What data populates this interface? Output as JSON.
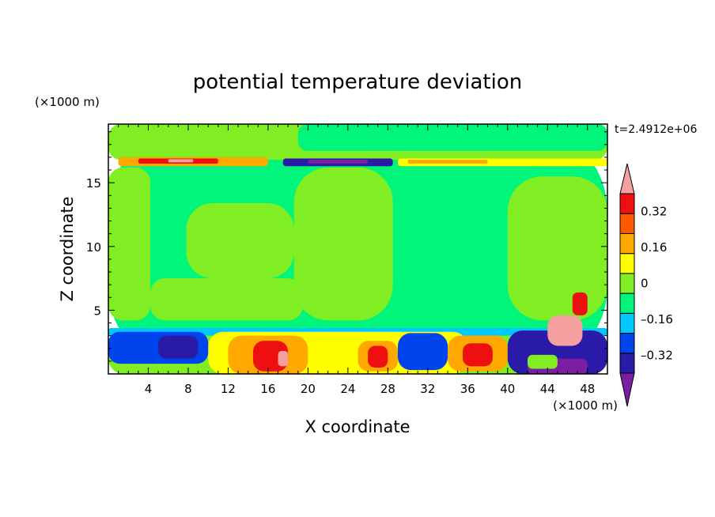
{
  "chart_data": {
    "type": "heatmap",
    "title": "potential temperature deviation",
    "xlabel": "X coordinate",
    "ylabel": "Z coordinate",
    "x_unit": "(×1000 m)",
    "y_unit": "(×1000 m)",
    "time_label": "t=2.4912e+06",
    "xlim": [
      0,
      50
    ],
    "ylim": [
      0,
      19.6
    ],
    "x_ticks": [
      4,
      8,
      12,
      16,
      20,
      24,
      28,
      32,
      36,
      40,
      44,
      48
    ],
    "y_ticks": [
      5,
      10,
      15
    ],
    "x_tick_labels": [
      "4",
      "8",
      "12",
      "16",
      "20",
      "24",
      "28",
      "32",
      "36",
      "40",
      "44",
      "48"
    ],
    "y_tick_labels": [
      "5",
      "10",
      "15"
    ],
    "colorbar": {
      "levels": [
        -0.4,
        -0.32,
        -0.24,
        -0.16,
        -0.08,
        0,
        0.08,
        0.16,
        0.24,
        0.32,
        0.4
      ],
      "labels": [
        {
          "value": 0.32,
          "text": "0.32"
        },
        {
          "value": 0.16,
          "text": "0.16"
        },
        {
          "value": 0,
          "text": "0"
        },
        {
          "value": -0.16,
          "text": "–0.16"
        },
        {
          "value": -0.32,
          "text": "–0.32"
        }
      ],
      "colors_bottom_to_top": [
        "#7b1fa2",
        "#2a1aa8",
        "#0044ee",
        "#00c8ff",
        "#00f57a",
        "#80ee22",
        "#ffff00",
        "#ffa800",
        "#ff5a00",
        "#ee1010",
        "#f5a0a0"
      ]
    },
    "regions": [
      {
        "color": "#00f57a",
        "x": [
          0,
          50
        ],
        "z": [
          0,
          19.6
        ]
      },
      {
        "color": "#80ee22",
        "x": [
          0,
          50
        ],
        "z": [
          16.8,
          19.6
        ]
      },
      {
        "color": "#00f57a",
        "x": [
          19,
          50
        ],
        "z": [
          17.5,
          19.6
        ]
      },
      {
        "color": "#80ee22",
        "x": [
          0,
          4.2
        ],
        "z": [
          4.2,
          16.2
        ]
      },
      {
        "color": "#80ee22",
        "x": [
          4.2,
          19.5
        ],
        "z": [
          4.2,
          7.5
        ]
      },
      {
        "color": "#80ee22",
        "x": [
          7.8,
          18.6
        ],
        "z": [
          7.5,
          13.4
        ]
      },
      {
        "color": "#80ee22",
        "x": [
          18.6,
          28.5
        ],
        "z": [
          4.2,
          16.2
        ]
      },
      {
        "color": "#80ee22",
        "x": [
          40,
          50
        ],
        "z": [
          4.2,
          15.5
        ]
      },
      {
        "color": "#ffa800",
        "x": [
          1,
          16
        ],
        "z": [
          16.3,
          17.0
        ]
      },
      {
        "color": "#ee1010",
        "x": [
          3,
          11
        ],
        "z": [
          16.5,
          16.9
        ]
      },
      {
        "color": "#f5a0a0",
        "x": [
          6,
          8.5
        ],
        "z": [
          16.6,
          16.85
        ]
      },
      {
        "color": "#2a1aa8",
        "x": [
          17.5,
          28.5
        ],
        "z": [
          16.3,
          16.9
        ]
      },
      {
        "color": "#7b1fa2",
        "x": [
          20,
          26
        ],
        "z": [
          16.5,
          16.8
        ]
      },
      {
        "color": "#ffff00",
        "x": [
          29,
          50
        ],
        "z": [
          16.3,
          16.9
        ]
      },
      {
        "color": "#ffa800",
        "x": [
          30,
          38
        ],
        "z": [
          16.5,
          16.8
        ]
      },
      {
        "color": "#80ee22",
        "x": [
          0,
          50
        ],
        "z": [
          0,
          3.4
        ]
      },
      {
        "color": "#00c8ff",
        "x": [
          0,
          50
        ],
        "z": [
          3.0,
          3.6
        ]
      },
      {
        "color": "#ffff00",
        "x": [
          10,
          36
        ],
        "z": [
          0,
          3.3
        ]
      },
      {
        "color": "#ffa800",
        "x": [
          12,
          20
        ],
        "z": [
          0,
          3.0
        ]
      },
      {
        "color": "#ee1010",
        "x": [
          14.5,
          18
        ],
        "z": [
          0.2,
          2.6
        ]
      },
      {
        "color": "#f5a0a0",
        "x": [
          17,
          18
        ],
        "z": [
          0.6,
          1.8
        ]
      },
      {
        "color": "#0044ee",
        "x": [
          0,
          10
        ],
        "z": [
          0.8,
          3.3
        ]
      },
      {
        "color": "#2a1aa8",
        "x": [
          5,
          9
        ],
        "z": [
          1.2,
          3.0
        ]
      },
      {
        "color": "#ffa800",
        "x": [
          25,
          29
        ],
        "z": [
          0.2,
          2.6
        ]
      },
      {
        "color": "#ee1010",
        "x": [
          26,
          28
        ],
        "z": [
          0.5,
          2.2
        ]
      },
      {
        "color": "#0044ee",
        "x": [
          29,
          34
        ],
        "z": [
          0.3,
          3.2
        ]
      },
      {
        "color": "#ffa800",
        "x": [
          34,
          40
        ],
        "z": [
          0.2,
          3.0
        ]
      },
      {
        "color": "#ee1010",
        "x": [
          35.5,
          38.5
        ],
        "z": [
          0.6,
          2.4
        ]
      },
      {
        "color": "#2a1aa8",
        "x": [
          40,
          50
        ],
        "z": [
          0,
          3.4
        ]
      },
      {
        "color": "#7b1fa2",
        "x": [
          42,
          48
        ],
        "z": [
          0,
          1.2
        ]
      },
      {
        "color": "#f5a0a0",
        "x": [
          44,
          47.5
        ],
        "z": [
          2.2,
          4.6
        ]
      },
      {
        "color": "#ee1010",
        "x": [
          46.5,
          48
        ],
        "z": [
          4.6,
          6.4
        ]
      },
      {
        "color": "#80ee22",
        "x": [
          42,
          45
        ],
        "z": [
          0.4,
          1.5
        ]
      }
    ]
  }
}
